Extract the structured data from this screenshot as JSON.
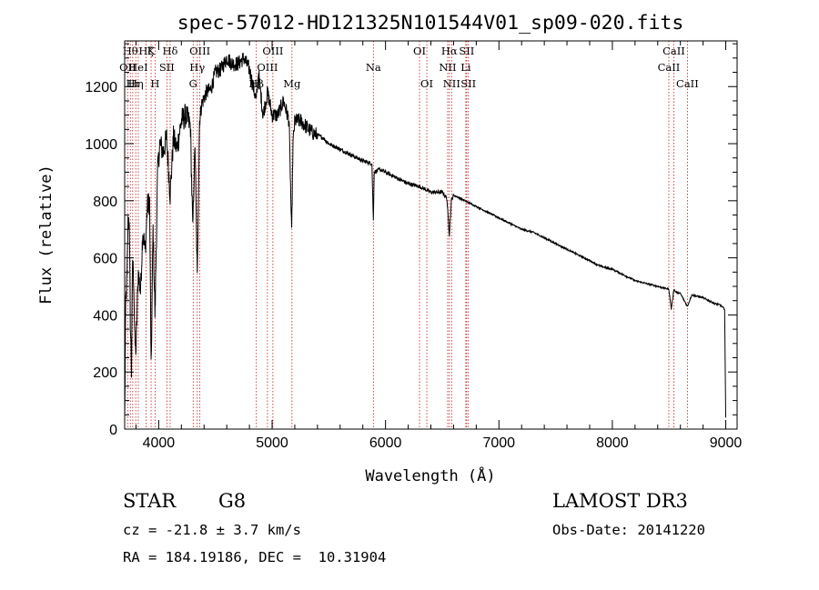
{
  "chart_data": {
    "type": "line",
    "title": "spec-57012-HD121325N101544V01_sp09-020.fits",
    "xlabel": "Wavelength (Å)",
    "ylabel": "Flux (relative)",
    "xlim": [
      3700,
      9100
    ],
    "ylim": [
      0,
      1360
    ],
    "xticks": [
      4000,
      5000,
      6000,
      7000,
      8000,
      9000
    ],
    "xtick_labels": [
      "4000",
      "5000",
      "6000",
      "7000",
      "8000",
      "9000"
    ],
    "yticks": [
      0,
      200,
      400,
      600,
      800,
      1000,
      1200
    ],
    "ytick_labels": [
      "0",
      "200",
      "400",
      "600",
      "800",
      "1000",
      "1200"
    ],
    "grid": false,
    "series": [
      {
        "name": "spectrum",
        "x": [
          3700,
          3710,
          3720,
          3730,
          3740,
          3750,
          3760,
          3770,
          3780,
          3790,
          3800,
          3820,
          3840,
          3860,
          3880,
          3900,
          3920,
          3933,
          3950,
          3968,
          3990,
          4010,
          4040,
          4070,
          4101,
          4130,
          4160,
          4200,
          4240,
          4280,
          4300,
          4320,
          4340,
          4360,
          4380,
          4420,
          4460,
          4500,
          4550,
          4600,
          4650,
          4700,
          4750,
          4800,
          4861,
          4880,
          4920,
          4960,
          5000,
          5050,
          5100,
          5150,
          5172,
          5184,
          5200,
          5250,
          5300,
          5350,
          5400,
          5450,
          5500,
          5600,
          5700,
          5800,
          5880,
          5893,
          5900,
          5950,
          6000,
          6100,
          6200,
          6300,
          6400,
          6500,
          6540,
          6563,
          6580,
          6600,
          6700,
          6800,
          6900,
          7000,
          7100,
          7200,
          7300,
          7400,
          7500,
          7600,
          7700,
          7800,
          7900,
          8000,
          8100,
          8200,
          8300,
          8400,
          8498,
          8520,
          8542,
          8560,
          8600,
          8662,
          8700,
          8800,
          8900,
          8950,
          8990,
          9000
        ],
        "values": [
          20,
          450,
          520,
          720,
          750,
          380,
          200,
          600,
          520,
          300,
          280,
          550,
          480,
          700,
          620,
          780,
          800,
          200,
          700,
          400,
          900,
          1000,
          970,
          1020,
          820,
          1020,
          980,
          1080,
          1100,
          1060,
          700,
          1000,
          530,
          1080,
          1140,
          1180,
          1190,
          1250,
          1260,
          1300,
          1280,
          1280,
          1300,
          1260,
          1150,
          1250,
          1100,
          1180,
          1100,
          1100,
          1150,
          1080,
          680,
          1000,
          1080,
          1080,
          1060,
          1040,
          1030,
          1020,
          1000,
          980,
          960,
          940,
          930,
          730,
          900,
          910,
          900,
          880,
          860,
          850,
          830,
          830,
          810,
          680,
          800,
          820,
          800,
          780,
          760,
          740,
          720,
          700,
          690,
          670,
          650,
          630,
          610,
          590,
          570,
          560,
          540,
          520,
          510,
          500,
          490,
          420,
          490,
          480,
          475,
          430,
          470,
          460,
          440,
          435,
          420,
          40
        ]
      }
    ],
    "lines": [
      {
        "w": 3727,
        "label": "OII",
        "row": 2
      },
      {
        "w": 3750,
        "label": "Hθ",
        "row": 1
      },
      {
        "w": 3771,
        "label": "Hι",
        "row": 3
      },
      {
        "w": 3798,
        "label": "Hη",
        "row": 3
      },
      {
        "w": 3820,
        "label": "HeI",
        "row": 2
      },
      {
        "w": 3889,
        "label": "Hζ",
        "row": 1
      },
      {
        "w": 3933,
        "label": "K",
        "row": 1
      },
      {
        "w": 3968,
        "label": "H",
        "row": 3
      },
      {
        "w": 4072,
        "label": "SII",
        "row": 2
      },
      {
        "w": 4101,
        "label": "Hδ",
        "row": 1
      },
      {
        "w": 4304,
        "label": "G",
        "row": 3
      },
      {
        "w": 4340,
        "label": "Hγ",
        "row": 2
      },
      {
        "w": 4363,
        "label": "OIII",
        "row": 1
      },
      {
        "w": 4861,
        "label": "Hβ",
        "row": 3
      },
      {
        "w": 4959,
        "label": "OIII",
        "row": 2
      },
      {
        "w": 5007,
        "label": "OIII",
        "row": 1
      },
      {
        "w": 5175,
        "label": "Mg",
        "row": 3
      },
      {
        "w": 5893,
        "label": "Na",
        "row": 2
      },
      {
        "w": 6300,
        "label": "OI",
        "row": 1
      },
      {
        "w": 6364,
        "label": "OI",
        "row": 3
      },
      {
        "w": 6548,
        "label": "NII",
        "row": 2
      },
      {
        "w": 6563,
        "label": "Hα",
        "row": 1
      },
      {
        "w": 6583,
        "label": "NII",
        "row": 3
      },
      {
        "w": 6708,
        "label": "Li",
        "row": 2
      },
      {
        "w": 6716,
        "label": "SII",
        "row": 1
      },
      {
        "w": 6731,
        "label": "SII",
        "row": 3
      },
      {
        "w": 8498,
        "label": "CaII",
        "row": 2
      },
      {
        "w": 8542,
        "label": "CaII",
        "row": 1
      },
      {
        "w": 8662,
        "label": "CaII",
        "row": 3
      }
    ]
  },
  "info": {
    "object_class": "STAR",
    "subclass": "G8",
    "survey": "LAMOST DR3",
    "cz": "cz = -21.8 ± 3.7 km/s",
    "obs_date": "Obs-Date: 20141220",
    "coords": "RA = 184.19186, DEC =  10.31904"
  }
}
